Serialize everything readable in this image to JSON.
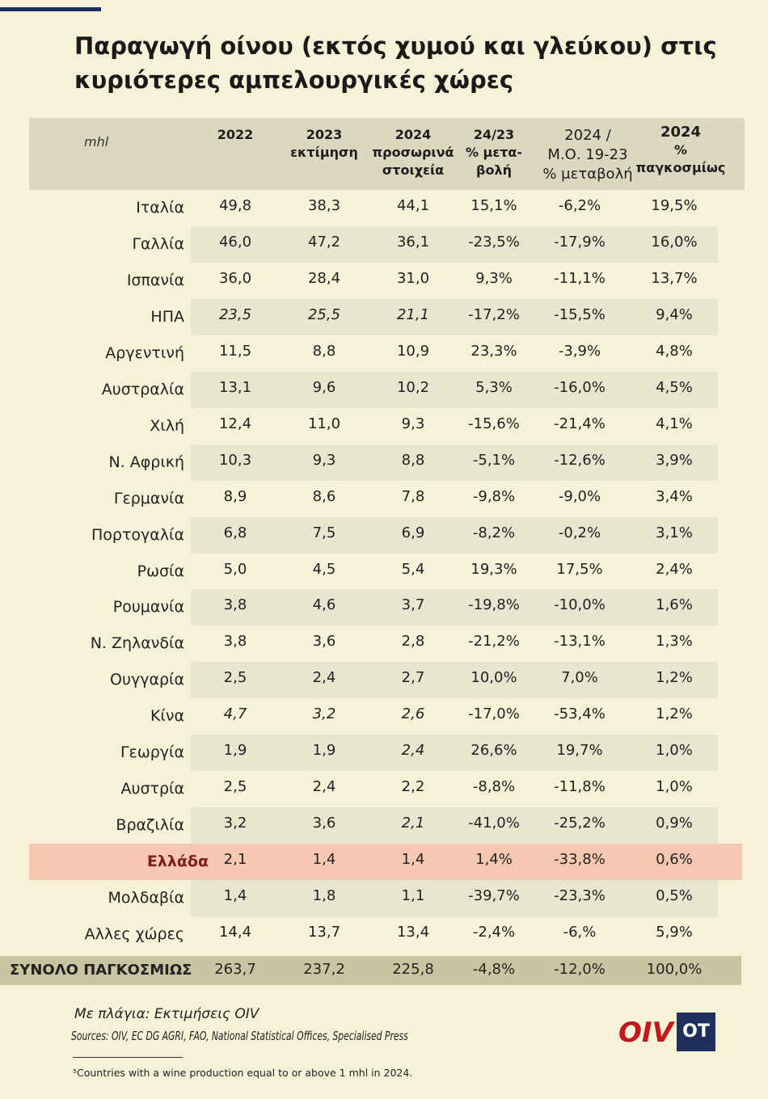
{
  "title": "Παραγωγή οίνου (εκτός χυμού και γλεύκου) στις κυριότερες αμπελουργικές χώρες",
  "header": {
    "unit": "mhl",
    "col_2022": "2022",
    "col_2023_a": "2023",
    "col_2023_b": "εκτίμηση",
    "col_2024_a": "2024",
    "col_2024_b": "προσωρινά",
    "col_2024_c": "στοιχεία",
    "col_chg_a": "24/23",
    "col_chg_b": "% μετα-",
    "col_chg_c": "βολή",
    "col_avg_a": "2024 /",
    "col_avg_b": "Μ.Ο. 19-23",
    "col_avg_c": "% μεταβολή",
    "col_share_a": "2024",
    "col_share_b": "% παγκοσμίως"
  },
  "rows": [
    {
      "country": "Ιταλία",
      "v2022": "49,8",
      "v2023": "38,3",
      "v2024": "44,1",
      "chg": "15,1%",
      "avg": "-6,2%",
      "share": "19,5%"
    },
    {
      "country": "Γαλλία",
      "v2022": "46,0",
      "v2023": "47,2",
      "v2024": "36,1",
      "chg": "-23,5%",
      "avg": "-17,9%",
      "share": "16,0%"
    },
    {
      "country": "Ισπανία",
      "v2022": "36,0",
      "v2023": "28,4",
      "v2024": "31,0",
      "chg": "9,3%",
      "avg": "-11,1%",
      "share": "13,7%"
    },
    {
      "country": "ΗΠΑ",
      "v2022": "23,5",
      "v2023": "25,5",
      "v2024": "21,1",
      "chg": "-17,2%",
      "avg": "-15,5%",
      "share": "9,4%"
    },
    {
      "country": "Αργεντινή",
      "v2022": "11,5",
      "v2023": "8,8",
      "v2024": "10,9",
      "chg": "23,3%",
      "avg": "-3,9%",
      "share": "4,8%"
    },
    {
      "country": "Αυστραλία",
      "v2022": "13,1",
      "v2023": "9,6",
      "v2024": "10,2",
      "chg": "5,3%",
      "avg": "-16,0%",
      "share": "4,5%"
    },
    {
      "country": "Χιλή",
      "v2022": "12,4",
      "v2023": "11,0",
      "v2024": "9,3",
      "chg": "-15,6%",
      "avg": "-21,4%",
      "share": "4,1%"
    },
    {
      "country": "Ν. Αφρική",
      "v2022": "10,3",
      "v2023": "9,3",
      "v2024": "8,8",
      "chg": "-5,1%",
      "avg": "-12,6%",
      "share": "3,9%"
    },
    {
      "country": "Γερμανία",
      "v2022": "8,9",
      "v2023": "8,6",
      "v2024": "7,8",
      "chg": "-9,8%",
      "avg": "-9,0%",
      "share": "3,4%"
    },
    {
      "country": "Πορτογαλία",
      "v2022": "6,8",
      "v2023": "7,5",
      "v2024": "6,9",
      "chg": "-8,2%",
      "avg": "-0,2%",
      "share": "3,1%"
    },
    {
      "country": "Ρωσία",
      "v2022": "5,0",
      "v2023": "4,5",
      "v2024": "5,4",
      "chg": "19,3%",
      "avg": "17,5%",
      "share": "2,4%"
    },
    {
      "country": "Ρουμανία",
      "v2022": "3,8",
      "v2023": "4,6",
      "v2024": "3,7",
      "chg": "-19,8%",
      "avg": "-10,0%",
      "share": "1,6%"
    },
    {
      "country": "Ν. Ζηλανδία",
      "v2022": "3,8",
      "v2023": "3,6",
      "v2024": "2,8",
      "chg": "-21,2%",
      "avg": "-13,1%",
      "share": "1,3%"
    },
    {
      "country": "Ουγγαρία",
      "v2022": "2,5",
      "v2023": "2,4",
      "v2024": "2,7",
      "chg": "10,0%",
      "avg": "7,0%",
      "share": "1,2%"
    },
    {
      "country": "Κίνα",
      "v2022": "4,7",
      "v2023": "3,2",
      "v2024": "2,6",
      "chg": "-17,0%",
      "avg": "-53,4%",
      "share": "1,2%"
    },
    {
      "country": "Γεωργία",
      "v2022": "1,9",
      "v2023": "1,9",
      "v2024": "2,4",
      "chg": "26,6%",
      "avg": "19,7%",
      "share": "1,0%"
    },
    {
      "country": "Αυστρία",
      "v2022": "2,5",
      "v2023": "2,4",
      "v2024": "2,2",
      "chg": "-8,8%",
      "avg": "-11,8%",
      "share": "1,0%"
    },
    {
      "country": "Βραζιλία",
      "v2022": "3,2",
      "v2023": "3,6",
      "v2024": "2,1",
      "chg": "-41,0%",
      "avg": "-25,2%",
      "share": "0,9%"
    },
    {
      "country": "Ελλάδα",
      "v2022": "2,1",
      "v2023": "1,4",
      "v2024": "1,4",
      "chg": "1,4%",
      "avg": "-33,8%",
      "share": "0,6%"
    },
    {
      "country": "Μολδαβία",
      "v2022": "1,4",
      "v2023": "1,8",
      "v2024": "1,1",
      "chg": "-39,7%",
      "avg": "-23,3%",
      "share": "0,5%"
    },
    {
      "country": "Αλλες χώρες",
      "v2022": "14,4",
      "v2023": "13,7",
      "v2024": "13,4",
      "chg": "-2,4%",
      "avg": "-6,%",
      "share": "5,9%"
    }
  ],
  "total": {
    "country": "ΣΥΝΟΛΟ ΠΑΓΚΟΣΜΙΩΣ",
    "v2022": "263,7",
    "v2023": "237,2",
    "v2024": "225,8",
    "chg": "-4,8%",
    "avg": "-12,0%",
    "share": "100,0%"
  },
  "footer": {
    "italic_note": "Με πλάγια: Εκτιμήσεις OIV",
    "sources": "Sources: OIV, EC DG AGRI, FAO, National Statistical Offices, Specialised Press",
    "footnote": "⁵Countries with a wine production equal to or above 1 mhl in 2024.",
    "oiv_logo": "OIV",
    "ot_logo": "OT"
  },
  "colors": {
    "background": "#f6f2d8",
    "header": "#dcd8bf",
    "stripe": "#e9e6cf",
    "greece_highlight": "#f6c8b1",
    "total": "#c9c5a2",
    "oiv_red": "#c4161c",
    "ot_navy": "#1f2f5c"
  },
  "italic_cells": {
    "ΗΠΑ": [
      "v2022",
      "v2023",
      "v2024"
    ],
    "Κίνα": [
      "v2022",
      "v2023",
      "v2024"
    ],
    "Γεωργία": [
      "v2024"
    ],
    "Βραζιλία": [
      "v2024"
    ]
  }
}
